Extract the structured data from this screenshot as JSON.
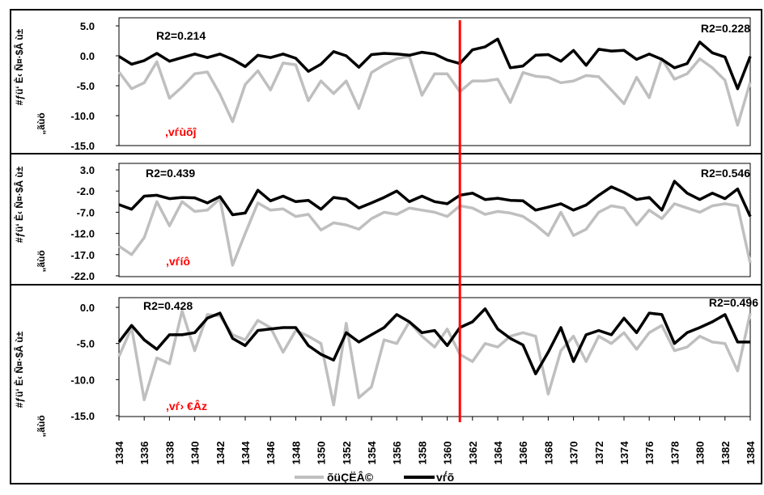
{
  "chart_data": {
    "type": "line",
    "x_ticks": [
      "1334",
      "1336",
      "1338",
      "1340",
      "1342",
      "1344",
      "1346",
      "1348",
      "1350",
      "1352",
      "1354",
      "1356",
      "1358",
      "1360",
      "1362",
      "1364",
      "1366",
      "1368",
      "1370",
      "1372",
      "1374",
      "1376",
      "1378",
      "1380",
      "1382",
      "1384"
    ],
    "ylabel_lines": [
      "#ƒü‘ È‹ Ñ¤·$Â ù±",
      "„ãùö"
    ],
    "legend": [
      {
        "label": "õüÇЁÂ©",
        "color": "#bfbfbf"
      },
      {
        "label": "vѓ́õ",
        "color": "#000000"
      }
    ],
    "divider_year": 1361,
    "divider_color": "#ff0000",
    "series_colors": {
      "gray": "#bfbfbf",
      "black": "#000000"
    },
    "panels": [
      {
        "label": ",vѓùõĵ",
        "yticks": [
          "5.0",
          "0.0",
          "-5.0",
          "-10.0",
          "-15.0"
        ],
        "ylim": [
          -15,
          5
        ],
        "r2_left": "R2=0.214",
        "r2_right": "R2=0.228",
        "series": [
          {
            "key": "gray",
            "values": [
              -2.7,
              -5.5,
              -4.5,
              -1.0,
              -7.1,
              -5.2,
              -3.0,
              -2.7,
              -6.4,
              -11.0,
              -4.8,
              -2.5,
              -5.7,
              -1.2,
              -1.5,
              -7.5,
              -4.2,
              -6.3,
              -4.2,
              -8.8,
              -2.8,
              -1.5,
              -0.5,
              -0.1,
              -6.6,
              -3.0,
              -3.0,
              -6.0,
              -4.2,
              -4.2,
              -3.9,
              -7.8,
              -2.8,
              -3.4,
              -3.6,
              -4.5,
              -4.2,
              -3.3,
              -3.5,
              -5.7,
              -8.0,
              -3.6,
              -7.0,
              -0.5,
              -3.9,
              -3.0,
              -0.5,
              -2.0,
              -4.1,
              -11.6,
              -4.4
            ]
          },
          {
            "key": "black",
            "values": [
              -0.1,
              -1.4,
              -0.8,
              0.4,
              -0.9,
              -0.3,
              0.3,
              -0.3,
              0.3,
              -0.6,
              -1.8,
              0.1,
              -0.3,
              0.3,
              -0.4,
              -2.6,
              -1.4,
              0.7,
              0.0,
              -1.9,
              0.2,
              0.4,
              0.3,
              0.1,
              0.6,
              0.3,
              -0.7,
              -1.3,
              1.0,
              1.5,
              2.8,
              -2.0,
              -1.7,
              0.1,
              0.2,
              -0.9,
              0.9,
              -1.6,
              1.1,
              0.8,
              0.9,
              -0.6,
              0.3,
              -0.6,
              -2.0,
              -1.3,
              2.3,
              0.5,
              -0.2,
              -5.5,
              -0.1
            ]
          }
        ]
      },
      {
        "label": ",vѓíô",
        "yticks": [
          "3.0",
          "-2.0",
          "-7.0",
          "-12.0",
          "-17.0",
          "-22.0"
        ],
        "ylim": [
          -22,
          3
        ],
        "r2_left": "R2=0.439",
        "r2_right": "R2=0.546",
        "series": [
          {
            "key": "gray",
            "values": [
              -15.0,
              -17.0,
              -13.0,
              -4.5,
              -10.2,
              -4.5,
              -6.8,
              -6.5,
              -3.8,
              -19.5,
              -12.0,
              -4.8,
              -6.5,
              -6.2,
              -8.0,
              -7.5,
              -11.2,
              -9.5,
              -10.0,
              -11.0,
              -8.5,
              -7.0,
              -7.5,
              -6.0,
              -6.5,
              -7.0,
              -8.0,
              -5.5,
              -6.0,
              -7.5,
              -6.8,
              -7.2,
              -8.0,
              -10.0,
              -12.5,
              -7.0,
              -12.5,
              -11.0,
              -7.0,
              -5.5,
              -6.0,
              -10.0,
              -6.5,
              -8.5,
              -5.0,
              -6.0,
              -7.0,
              -5.5,
              -5.0,
              -5.5,
              -19.0
            ]
          },
          {
            "key": "black",
            "values": [
              -5.2,
              -6.3,
              -3.2,
              -3.0,
              -3.8,
              -3.5,
              -3.6,
              -4.8,
              -3.3,
              -7.6,
              -7.2,
              -1.8,
              -4.3,
              -3.2,
              -4.5,
              -4.2,
              -6.3,
              -3.5,
              -3.9,
              -6.0,
              -4.8,
              -3.5,
              -2.0,
              -4.5,
              -3.2,
              -4.5,
              -5.0,
              -3.0,
              -2.5,
              -4.0,
              -3.7,
              -4.2,
              -4.3,
              -6.5,
              -5.8,
              -5.0,
              -6.5,
              -5.3,
              -3.0,
              -1.0,
              -2.3,
              -4.0,
              -3.5,
              -6.5,
              0.3,
              -2.5,
              -4.0,
              -2.5,
              -3.8,
              -1.5,
              -8.0
            ]
          }
        ]
      },
      {
        "label": ",vѓ› €Âz",
        "yticks": [
          "0.0",
          "-5.0",
          "-10.0",
          "-15.0"
        ],
        "ylim": [
          -15,
          2.5
        ],
        "r2_left": "R2=0.428",
        "r2_right": "R2=0.496",
        "series": [
          {
            "key": "gray",
            "values": [
              -6.8,
              -2.8,
              -12.8,
              -7.0,
              -7.8,
              -0.5,
              -6.0,
              -1.0,
              -1.2,
              -3.8,
              -4.5,
              -1.8,
              -2.8,
              -6.2,
              -3.2,
              -4.0,
              -5.0,
              -13.5,
              -2.2,
              -12.5,
              -11.0,
              -4.5,
              -5.0,
              -2.0,
              -4.0,
              -5.5,
              -3.0,
              -6.5,
              -7.5,
              -5.0,
              -5.5,
              -4.0,
              -3.5,
              -4.0,
              -12.0,
              -6.0,
              -4.0,
              -7.5,
              -4.0,
              -5.0,
              -3.5,
              -5.8,
              -3.5,
              -2.5,
              -6.0,
              -5.5,
              -4.0,
              -4.8,
              -5.0,
              -8.8,
              -0.8
            ]
          },
          {
            "key": "black",
            "values": [
              -4.8,
              -2.5,
              -4.5,
              -5.8,
              -3.8,
              -3.8,
              -3.5,
              -1.5,
              -0.8,
              -4.3,
              -5.3,
              -3.2,
              -3.0,
              -2.8,
              -2.8,
              -5.3,
              -6.5,
              -7.3,
              -3.5,
              -4.8,
              -3.8,
              -2.8,
              -1.0,
              -2.0,
              -3.5,
              -3.2,
              -5.3,
              -2.8,
              -2.0,
              -0.2,
              -3.0,
              -4.3,
              -5.2,
              -9.2,
              -6.2,
              -2.8,
              -7.5,
              -3.8,
              -3.2,
              -3.8,
              -1.5,
              -3.5,
              -0.8,
              -1.0,
              -5.0,
              -3.5,
              -2.8,
              -2.0,
              -1.0,
              -4.8,
              -4.8
            ]
          }
        ]
      }
    ]
  }
}
